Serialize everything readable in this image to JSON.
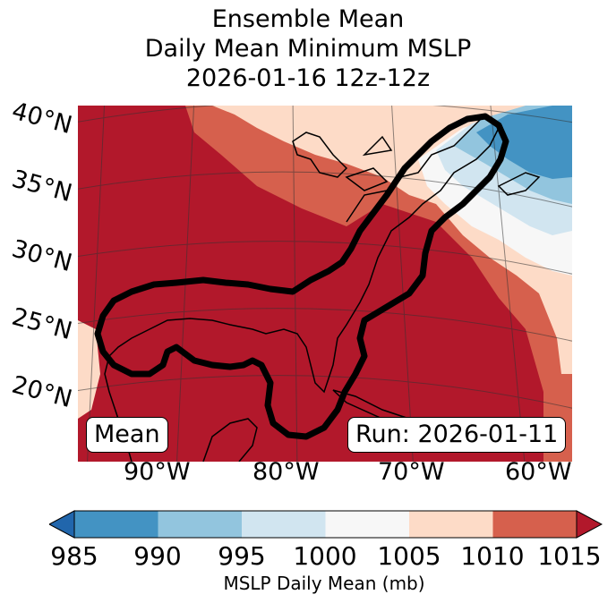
{
  "title": {
    "line1": "Ensemble Mean",
    "line2": "Daily Mean Minimum MSLP",
    "line3": "2026-01-16 12z-12z"
  },
  "map": {
    "lat_labels": [
      "40°N",
      "35°N",
      "30°N",
      "25°N",
      "20°N"
    ],
    "lon_labels": [
      "90°W",
      "80°W",
      "70°W",
      "60°W"
    ],
    "mean_box": "Mean",
    "run_box": "Run: 2026-01-11",
    "outline_color": "#000000"
  },
  "colorbar": {
    "label": "MSLP Daily Mean (mb)",
    "ticks": [
      "985",
      "990",
      "995",
      "1000",
      "1005",
      "1010",
      "1015"
    ],
    "colors": [
      "#2166ac",
      "#4393c3",
      "#92c5de",
      "#d1e5f0",
      "#f7f7f7",
      "#fddbc7",
      "#d6604d",
      "#b2182b"
    ]
  }
}
